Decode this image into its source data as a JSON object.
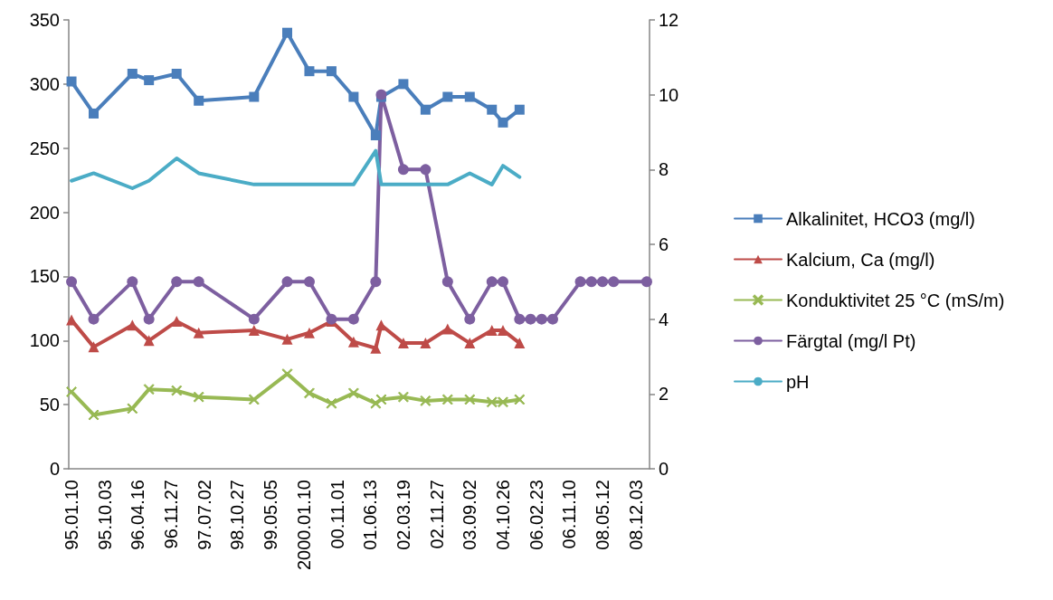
{
  "chart_data": {
    "type": "line",
    "categories": [
      "95.01.10",
      null,
      null,
      null,
      null,
      null,
      "95.10.03",
      null,
      null,
      null,
      null,
      null,
      "96.04.16",
      null,
      null,
      null,
      null,
      null,
      "96.11.27",
      null,
      null,
      null,
      null,
      null,
      "97.07.02",
      null,
      null,
      null,
      null,
      null,
      "98.10.27",
      null,
      null,
      null,
      null,
      null,
      "99.05.05",
      null,
      null,
      null,
      null,
      null,
      "2000.01.10",
      null,
      null,
      null,
      null,
      null,
      "00.11.01",
      null,
      null,
      null,
      null,
      null,
      "01.06.13",
      null,
      null,
      null,
      null,
      null,
      "02.03.19",
      null,
      null,
      null,
      null,
      null,
      "02.11.27",
      null,
      null,
      null,
      null,
      null,
      "03.09.02",
      null,
      null,
      null,
      null,
      null,
      "04.10.26",
      null,
      null,
      null,
      null,
      null,
      "06.02.23",
      null,
      null,
      null,
      null,
      null,
      "06.11.10",
      null,
      null,
      null,
      null,
      null,
      "08.05.12",
      null,
      null,
      null,
      null,
      null,
      "08.12.03",
      null,
      null
    ],
    "series": [
      {
        "name": "Alkalinitet, HCO3 (mg/l)",
        "color": "#4a7ebb",
        "marker": "square",
        "values": [
          302,
          null,
          null,
          null,
          277,
          null,
          null,
          null,
          null,
          null,
          null,
          308,
          null,
          null,
          303,
          null,
          null,
          null,
          null,
          308,
          null,
          null,
          null,
          287,
          null,
          null,
          null,
          null,
          null,
          null,
          null,
          null,
          null,
          290,
          null,
          null,
          null,
          null,
          null,
          340,
          null,
          null,
          null,
          310,
          null,
          null,
          null,
          310,
          null,
          null,
          null,
          290,
          null,
          null,
          null,
          260,
          290,
          null,
          null,
          null,
          300,
          null,
          null,
          null,
          280,
          null,
          null,
          null,
          290,
          null,
          null,
          null,
          290,
          null,
          null,
          null,
          280,
          null,
          270,
          null,
          null,
          280,
          null,
          null,
          null,
          null,
          null,
          null,
          null,
          null,
          null,
          null,
          null,
          null,
          null,
          null,
          null,
          null,
          null,
          null,
          null,
          null,
          null,
          null,
          null
        ]
      },
      {
        "name": "Kalcium, Ca (mg/l)",
        "color": "#be4b48",
        "marker": "triangle",
        "values": [
          116,
          null,
          null,
          null,
          95,
          null,
          null,
          null,
          null,
          null,
          null,
          112,
          null,
          null,
          100,
          null,
          null,
          null,
          null,
          115,
          null,
          null,
          null,
          106,
          null,
          null,
          null,
          null,
          null,
          null,
          null,
          null,
          null,
          108,
          null,
          null,
          null,
          null,
          null,
          101,
          null,
          null,
          null,
          106,
          null,
          null,
          null,
          115,
          null,
          null,
          null,
          99,
          null,
          null,
          null,
          94,
          112,
          null,
          null,
          null,
          98,
          null,
          null,
          null,
          98,
          null,
          null,
          null,
          109,
          null,
          null,
          null,
          98,
          null,
          null,
          null,
          108,
          null,
          108,
          null,
          null,
          98,
          null,
          null,
          null,
          null,
          null,
          null,
          null,
          null,
          null,
          null,
          null,
          null,
          null,
          null,
          null,
          null,
          null,
          null,
          null,
          null,
          null,
          null,
          null
        ]
      },
      {
        "name": "Konduktivitet 25 °C (mS/m)",
        "color": "#98b954",
        "marker": "cross",
        "values": [
          60,
          null,
          null,
          null,
          42,
          null,
          null,
          null,
          null,
          null,
          null,
          47,
          null,
          null,
          62,
          null,
          null,
          null,
          null,
          61,
          null,
          null,
          null,
          56,
          null,
          null,
          null,
          null,
          null,
          null,
          null,
          null,
          null,
          54,
          null,
          null,
          null,
          null,
          null,
          74,
          null,
          null,
          null,
          59,
          null,
          null,
          null,
          51,
          null,
          null,
          null,
          59,
          null,
          null,
          null,
          51,
          54,
          null,
          null,
          null,
          56,
          null,
          null,
          null,
          53,
          null,
          null,
          null,
          54,
          null,
          null,
          null,
          54,
          null,
          null,
          null,
          52,
          null,
          52,
          null,
          null,
          54,
          null,
          null,
          null,
          null,
          null,
          null,
          null,
          null,
          null,
          null,
          null,
          null,
          null,
          null,
          null,
          null,
          null,
          null,
          null,
          null,
          null,
          null,
          null
        ]
      },
      {
        "name": "Färgtal (mg/l Pt)",
        "color": "#7d5fa0",
        "marker": "circle",
        "axis": "y2",
        "values": [
          5,
          null,
          null,
          null,
          4,
          null,
          null,
          null,
          null,
          null,
          null,
          5,
          null,
          null,
          4,
          null,
          null,
          null,
          null,
          5,
          null,
          null,
          null,
          5,
          null,
          null,
          null,
          null,
          null,
          null,
          null,
          null,
          null,
          4,
          null,
          null,
          null,
          null,
          null,
          5,
          null,
          null,
          null,
          5,
          null,
          null,
          null,
          4,
          null,
          null,
          null,
          4,
          null,
          null,
          null,
          5,
          10,
          null,
          null,
          null,
          8,
          null,
          null,
          null,
          8,
          null,
          null,
          null,
          5,
          null,
          null,
          null,
          4,
          null,
          null,
          null,
          5,
          null,
          5,
          null,
          null,
          4,
          null,
          4,
          null,
          4,
          null,
          4,
          null,
          null,
          null,
          null,
          5,
          null,
          5,
          null,
          5,
          null,
          5,
          null,
          null,
          null,
          null,
          null,
          5
        ]
      },
      {
        "name": "pH",
        "color": "#4bacc6",
        "marker": "none",
        "axis": "y2",
        "values": [
          7.7,
          null,
          null,
          null,
          7.9,
          null,
          null,
          null,
          null,
          null,
          null,
          7.5,
          null,
          null,
          7.7,
          null,
          null,
          null,
          null,
          8.3,
          null,
          null,
          null,
          7.9,
          null,
          null,
          null,
          null,
          null,
          null,
          null,
          null,
          null,
          7.6,
          null,
          null,
          null,
          null,
          null,
          7.6,
          null,
          null,
          null,
          7.6,
          null,
          null,
          null,
          7.6,
          null,
          null,
          null,
          7.6,
          null,
          null,
          null,
          8.5,
          7.6,
          null,
          null,
          null,
          7.6,
          null,
          null,
          null,
          7.6,
          null,
          null,
          null,
          7.6,
          null,
          null,
          null,
          7.9,
          null,
          null,
          null,
          7.6,
          null,
          8.1,
          null,
          null,
          7.8,
          null,
          null,
          null,
          null,
          null,
          null,
          null,
          null,
          null,
          null,
          null,
          null,
          null,
          null,
          null,
          null,
          null,
          null,
          null,
          null,
          null,
          null,
          null
        ]
      }
    ],
    "ylim": [
      0,
      350
    ],
    "yticks": [
      0,
      50,
      100,
      150,
      200,
      250,
      300,
      350
    ],
    "y2lim": [
      0,
      12
    ],
    "y2ticks": [
      0,
      2,
      4,
      6,
      8,
      10,
      12
    ],
    "legend": "right",
    "grid": false
  }
}
